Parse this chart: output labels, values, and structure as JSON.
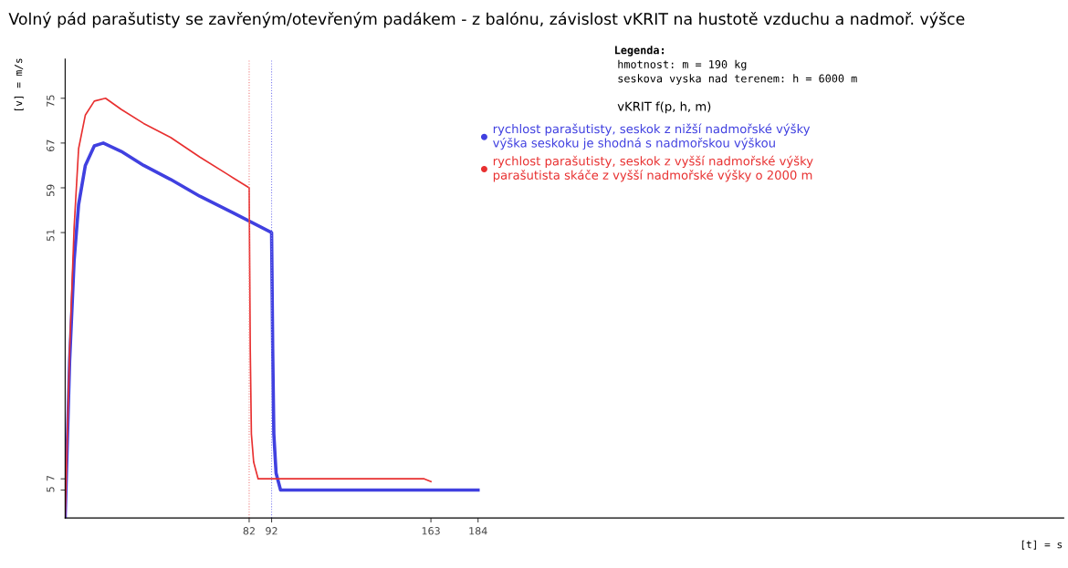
{
  "chart_data": {
    "type": "line",
    "title": "Volný pád parašutisty se zavřeným/otevřeným padákem - z balónu, závislost vKRIT na hustotě vzduchu a nadmoř. výšce",
    "xlabel": "[t] = s",
    "ylabel": "[v] = m/s",
    "xlim": [
      0,
      445
    ],
    "xticks": [
      82,
      92,
      163,
      184
    ],
    "ylim": [
      0,
      82
    ],
    "yticks": [
      5,
      7,
      51,
      59,
      67,
      75
    ],
    "grid": false,
    "legend": "top right",
    "annotations": [
      "Legenda:",
      "hmotnost: m = 190 kg",
      "seskova vyska nad terenem: h = 6000 m",
      "vKRIT f(p, h, m)"
    ],
    "ref_lines": [
      {
        "axis": "x",
        "value": 82,
        "color": "#f08080",
        "line_style": "dotted"
      },
      {
        "axis": "x",
        "value": 92,
        "color": "#8080f0",
        "line_style": "dotted"
      }
    ],
    "series": [
      {
        "name": "rychlost parašutisty, seskok z nižší nadmořské výšky\nvýška seskoku je shodná s nadmořskou výškou",
        "color": "#4040e0",
        "x": [
          0,
          2,
          4,
          6,
          9,
          13,
          17,
          25,
          35,
          47,
          60,
          75,
          92,
          92.5,
          93,
          94,
          96,
          140,
          184
        ],
        "values": [
          0,
          28,
          46,
          56,
          63,
          66.5,
          67,
          65.5,
          63,
          60.5,
          57.5,
          54.5,
          51,
          30,
          15,
          8,
          5,
          5,
          5
        ]
      },
      {
        "name": "rychlost parašutisty, seskok z vyšší nadmořské výšky\nparašutista skáče z vyšší nadmořské výšky o 2000 m",
        "color": "#e83030",
        "x": [
          0,
          2,
          4,
          6,
          9,
          13,
          18,
          25,
          35,
          47,
          60,
          72,
          82,
          82.5,
          83,
          84,
          86,
          120,
          160,
          163
        ],
        "values": [
          0,
          30,
          52,
          66,
          72,
          74.5,
          75,
          73,
          70.5,
          68,
          64.5,
          61.5,
          59,
          30,
          15,
          10,
          7,
          7,
          7,
          6.5
        ]
      }
    ]
  }
}
